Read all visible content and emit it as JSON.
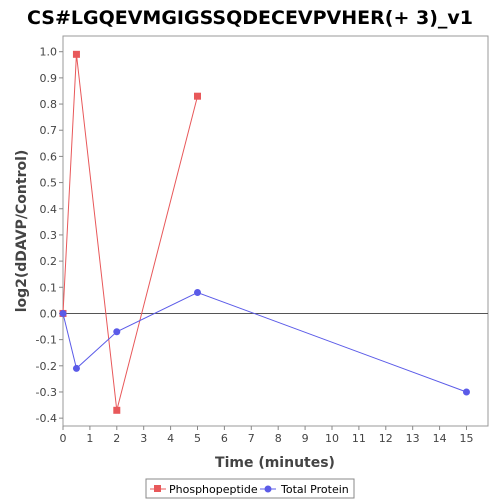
{
  "chart_data": {
    "type": "line",
    "title": "CS#LGQEVMGIGSSQDECEVPVHER(+ 3)_v1",
    "xlabel": "Time (minutes)",
    "ylabel": "log2(dDAVP/Control)",
    "xlim": [
      0,
      15.8
    ],
    "ylim": [
      -0.43,
      1.06
    ],
    "x_ticks": [
      0,
      1,
      2,
      3,
      4,
      5,
      6,
      7,
      8,
      9,
      10,
      11,
      12,
      13,
      14,
      15
    ],
    "y_ticks": [
      -0.4,
      -0.3,
      -0.2,
      -0.1,
      0.0,
      0.1,
      0.2,
      0.3,
      0.4,
      0.5,
      0.6,
      0.7,
      0.8,
      0.9,
      1.0
    ],
    "y_tick_labels": [
      "-0.4",
      "-0.3",
      "-0.2",
      "-0.1",
      "0.0",
      "0.1",
      "0.2",
      "0.3",
      "0.4",
      "0.5",
      "0.6",
      "0.7",
      "0.8",
      "0.9",
      "1.0"
    ],
    "zero_line": true,
    "grid": false,
    "legend_position": "bottom-center",
    "series": [
      {
        "name": "Phosphopeptide",
        "color": "#e8585a",
        "marker": "square",
        "x": [
          0,
          0.5,
          2,
          5
        ],
        "y": [
          0.0,
          0.99,
          -0.37,
          0.83
        ]
      },
      {
        "name": "Total Protein",
        "color": "#5b5be8",
        "marker": "circle",
        "x": [
          0,
          0.5,
          2,
          5,
          15
        ],
        "y": [
          0.0,
          -0.21,
          -0.07,
          0.08,
          -0.3
        ]
      }
    ]
  }
}
